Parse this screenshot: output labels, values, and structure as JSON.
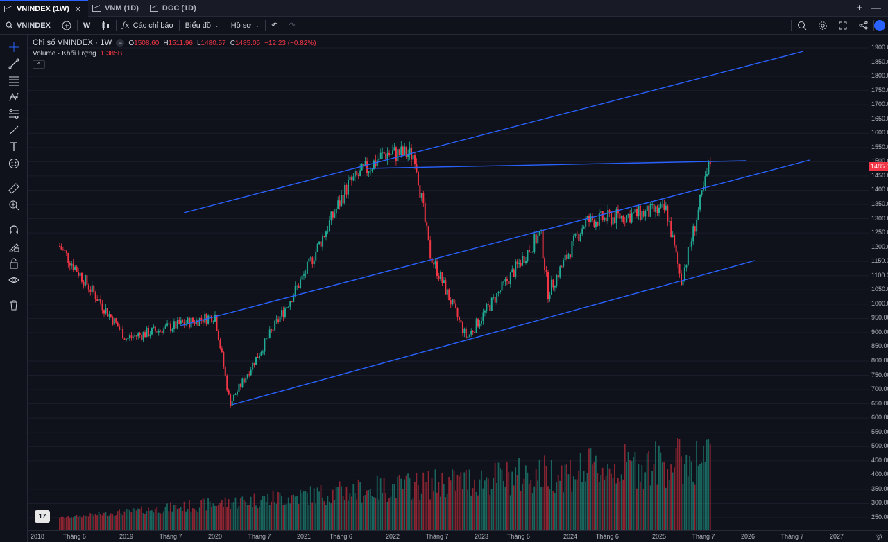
{
  "tabs": [
    {
      "label": "VNINDEX (1W)",
      "active": true
    },
    {
      "label": "VNM (1D)",
      "active": false
    },
    {
      "label": "DGC (1D)",
      "active": false
    }
  ],
  "toolbar": {
    "symbol": "VNINDEX",
    "interval": "W",
    "indicators_label": "Các chỉ báo",
    "layout_label": "Biểu đồ",
    "profile_label": "Hồ sơ"
  },
  "legend": {
    "title": "Chỉ số VNINDEX · 1W",
    "o_label": "O",
    "o": "1508.60",
    "h_label": "H",
    "h": "1511.96",
    "l_label": "L",
    "l": "1480.57",
    "c_label": "C",
    "c": "1485.05",
    "change": "−12.23 (−0.82%)",
    "volume_label": "Volume · Khối lượng",
    "volume_value": "1.385B"
  },
  "price_axis": {
    "ticks": [
      "1900.00",
      "1850.00",
      "1800.00",
      "1750.00",
      "1700.00",
      "1650.00",
      "1600.00",
      "1550.00",
      "1500.00",
      "1450.00",
      "1400.00",
      "1350.00",
      "1300.00",
      "1250.00",
      "1200.00",
      "1150.00",
      "1100.00",
      "1050.00",
      "1000.00",
      "950.00",
      "900.00",
      "850.00",
      "800.00",
      "750.00",
      "700.00",
      "650.00",
      "600.00",
      "550.00",
      "500.00",
      "450.00",
      "400.00",
      "350.00",
      "300.00",
      "250.00"
    ],
    "current_price": "1485.05"
  },
  "time_axis": {
    "ticks": [
      "2018",
      "Tháng 6",
      "2019",
      "Tháng 7",
      "2020",
      "Tháng 7",
      "2021",
      "Tháng 6",
      "2022",
      "Tháng 7",
      "2023",
      "Tháng 6",
      "2024",
      "Tháng 6",
      "2025",
      "Tháng 7",
      "2026",
      "Tháng 7",
      "2027"
    ]
  },
  "colors": {
    "up": "#22ab94",
    "down": "#f23645",
    "trendline": "#2962ff",
    "background": "#0f111b",
    "grid": "#1b1e2a"
  },
  "drawings": {
    "channel": "ascending parallel channel (3 lines)",
    "resistance": "horizontal line ~1500"
  },
  "chart_data": {
    "type": "candlestick",
    "title": "Chỉ số VNINDEX · 1W",
    "ylim": [
      230,
      1930
    ],
    "key_points": [
      {
        "date": "2018-04",
        "price": 1204
      },
      {
        "date": "2019-01",
        "price": 880
      },
      {
        "date": "2020-01",
        "price": 960
      },
      {
        "date": "2020-03",
        "price": 650
      },
      {
        "date": "2021-01",
        "price": 1100
      },
      {
        "date": "2021-07",
        "price": 1420
      },
      {
        "date": "2021-12",
        "price": 1530
      },
      {
        "date": "2022-04",
        "price": 1525
      },
      {
        "date": "2022-06",
        "price": 1180
      },
      {
        "date": "2022-11",
        "price": 880
      },
      {
        "date": "2023-09",
        "price": 1250
      },
      {
        "date": "2023-10",
        "price": 1040
      },
      {
        "date": "2024-03",
        "price": 1290
      },
      {
        "date": "2025-02",
        "price": 1330
      },
      {
        "date": "2025-04",
        "price": 1080
      },
      {
        "date": "2025-08",
        "price": 1508
      }
    ]
  }
}
